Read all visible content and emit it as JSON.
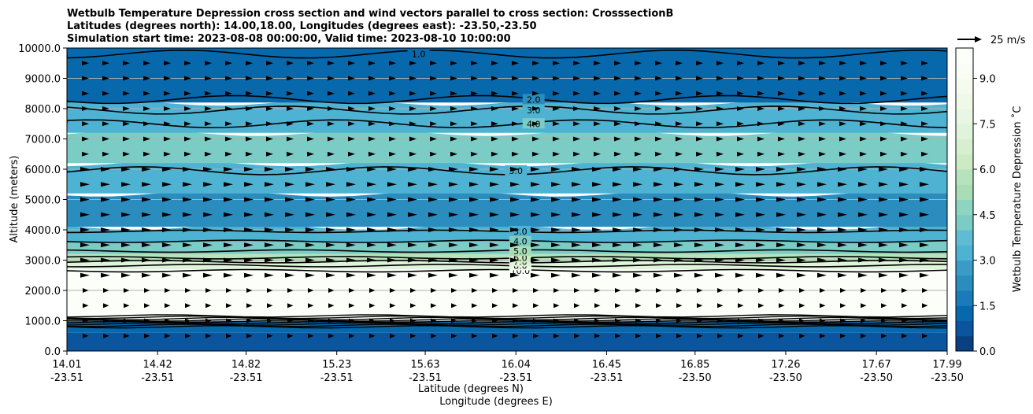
{
  "chart_data": {
    "type": "contour",
    "title_lines": [
      "Wetbulb Temperature Depression cross section and wind vectors parallel to cross section: CrosssectionB",
      "Latitudes (degrees north): 14.00,18.00, Longitudes (degrees east): -23.50,-23.50",
      "Simulation start time: 2023-08-08 00:00:00, Valid time: 2023-08-10 10:00:00"
    ],
    "ylabel": "Altitude (meters)",
    "xlabel_lines": [
      "Latitude (degrees N)",
      "Longitude (degrees E)"
    ],
    "ylim": [
      0,
      10000
    ],
    "y_ticks": [
      0,
      1000,
      2000,
      3000,
      4000,
      5000,
      6000,
      7000,
      8000,
      9000,
      10000
    ],
    "y_tick_labels": [
      "0.0",
      "1000.0",
      "2000.0",
      "3000.0",
      "4000.0",
      "5000.0",
      "6000.0",
      "7000.0",
      "8000.0",
      "9000.0",
      "10000.0"
    ],
    "xlim": [
      14.01,
      17.99
    ],
    "x_ticks": [
      {
        "lat": "14.01",
        "lon": "-23.51"
      },
      {
        "lat": "14.42",
        "lon": "-23.51"
      },
      {
        "lat": "14.82",
        "lon": "-23.51"
      },
      {
        "lat": "15.23",
        "lon": "-23.51"
      },
      {
        "lat": "15.63",
        "lon": "-23.51"
      },
      {
        "lat": "16.04",
        "lon": "-23.51"
      },
      {
        "lat": "16.45",
        "lon": "-23.51"
      },
      {
        "lat": "16.85",
        "lon": "-23.50"
      },
      {
        "lat": "17.26",
        "lon": "-23.50"
      },
      {
        "lat": "17.67",
        "lon": "-23.50"
      },
      {
        "lat": "17.99",
        "lon": "-23.50"
      }
    ],
    "grid": "horizontal",
    "colorbar": {
      "label": "Wetbulb Temperature Depression $^\\circ$C",
      "label_display": "Wetbulb Temperature Depression ˚C",
      "range": [
        0,
        10
      ],
      "ticks": [
        "0.0",
        "1.5",
        "3.0",
        "4.5",
        "6.0",
        "7.5",
        "9.0"
      ],
      "levels": 20,
      "colors": [
        "#084081",
        "#0b559f",
        "#0868ac",
        "#1a7bb8",
        "#2b8cbe",
        "#3a9bc8",
        "#4eb3d3",
        "#5fbcd4",
        "#7bccc4",
        "#8fd3c1",
        "#a8ddb5",
        "#b6e3bb",
        "#ccebc5",
        "#d6efd0",
        "#e0f3db",
        "#e8f6e3",
        "#f0f9e8",
        "#f5fbef",
        "#f9fdf5",
        "#fcfefa"
      ]
    },
    "bands": [
      {
        "y0": 0,
        "y1": 600,
        "value": 0.6
      },
      {
        "y0": 600,
        "y1": 1000,
        "value": 1.2
      },
      {
        "y0": 1000,
        "y1": 2700,
        "value": 10.0
      },
      {
        "y0": 2700,
        "y1": 2950,
        "value": 7.0
      },
      {
        "y0": 2950,
        "y1": 3200,
        "value": 5.5
      },
      {
        "y0": 3200,
        "y1": 3600,
        "value": 4.2
      },
      {
        "y0": 3600,
        "y1": 4100,
        "value": 3.2
      },
      {
        "y0": 4100,
        "y1": 5200,
        "value": 2.4
      },
      {
        "y0": 5200,
        "y1": 6200,
        "value": 3.3
      },
      {
        "y0": 6200,
        "y1": 7200,
        "value": 4.3
      },
      {
        "y0": 7200,
        "y1": 8200,
        "value": 3.0
      },
      {
        "y0": 8200,
        "y1": 10000,
        "value": 1.3
      }
    ],
    "contours": [
      {
        "level": "10.0",
        "y": 2650,
        "label": "10.0",
        "label_lat": 16.06
      },
      {
        "level": "8.0",
        "y": 2820,
        "label": "8.0",
        "label_lat": 16.06
      },
      {
        "level": "7.0",
        "y": 2950,
        "label": "7.0",
        "label_lat": 16.06
      },
      {
        "level": "6.0",
        "y": 3080,
        "label": "6.0",
        "label_lat": 16.06
      },
      {
        "level": "5.0",
        "y": 3300,
        "label": "5.0",
        "label_lat": 16.06
      },
      {
        "level": "4.0",
        "y": 3620,
        "label": "4.0",
        "label_lat": 16.06
      },
      {
        "level": "3.0",
        "y": 3950,
        "label": "3.0",
        "label_lat": 16.06
      },
      {
        "level": "3.0",
        "y": 5950,
        "label": "3.0",
        "label_lat": 16.04
      },
      {
        "level": "4.0",
        "y": 7500,
        "label": "4.0",
        "label_lat": 16.12
      },
      {
        "level": "3.0",
        "y": 7950,
        "label": "3.0",
        "label_lat": 16.12
      },
      {
        "level": "2.0",
        "y": 8300,
        "label": "2.0",
        "label_lat": 16.12
      },
      {
        "level": "1.0",
        "y": 9800,
        "label": "1.0",
        "label_lat": 15.6
      }
    ],
    "vector_legend": {
      "label": "25 m/s"
    }
  }
}
